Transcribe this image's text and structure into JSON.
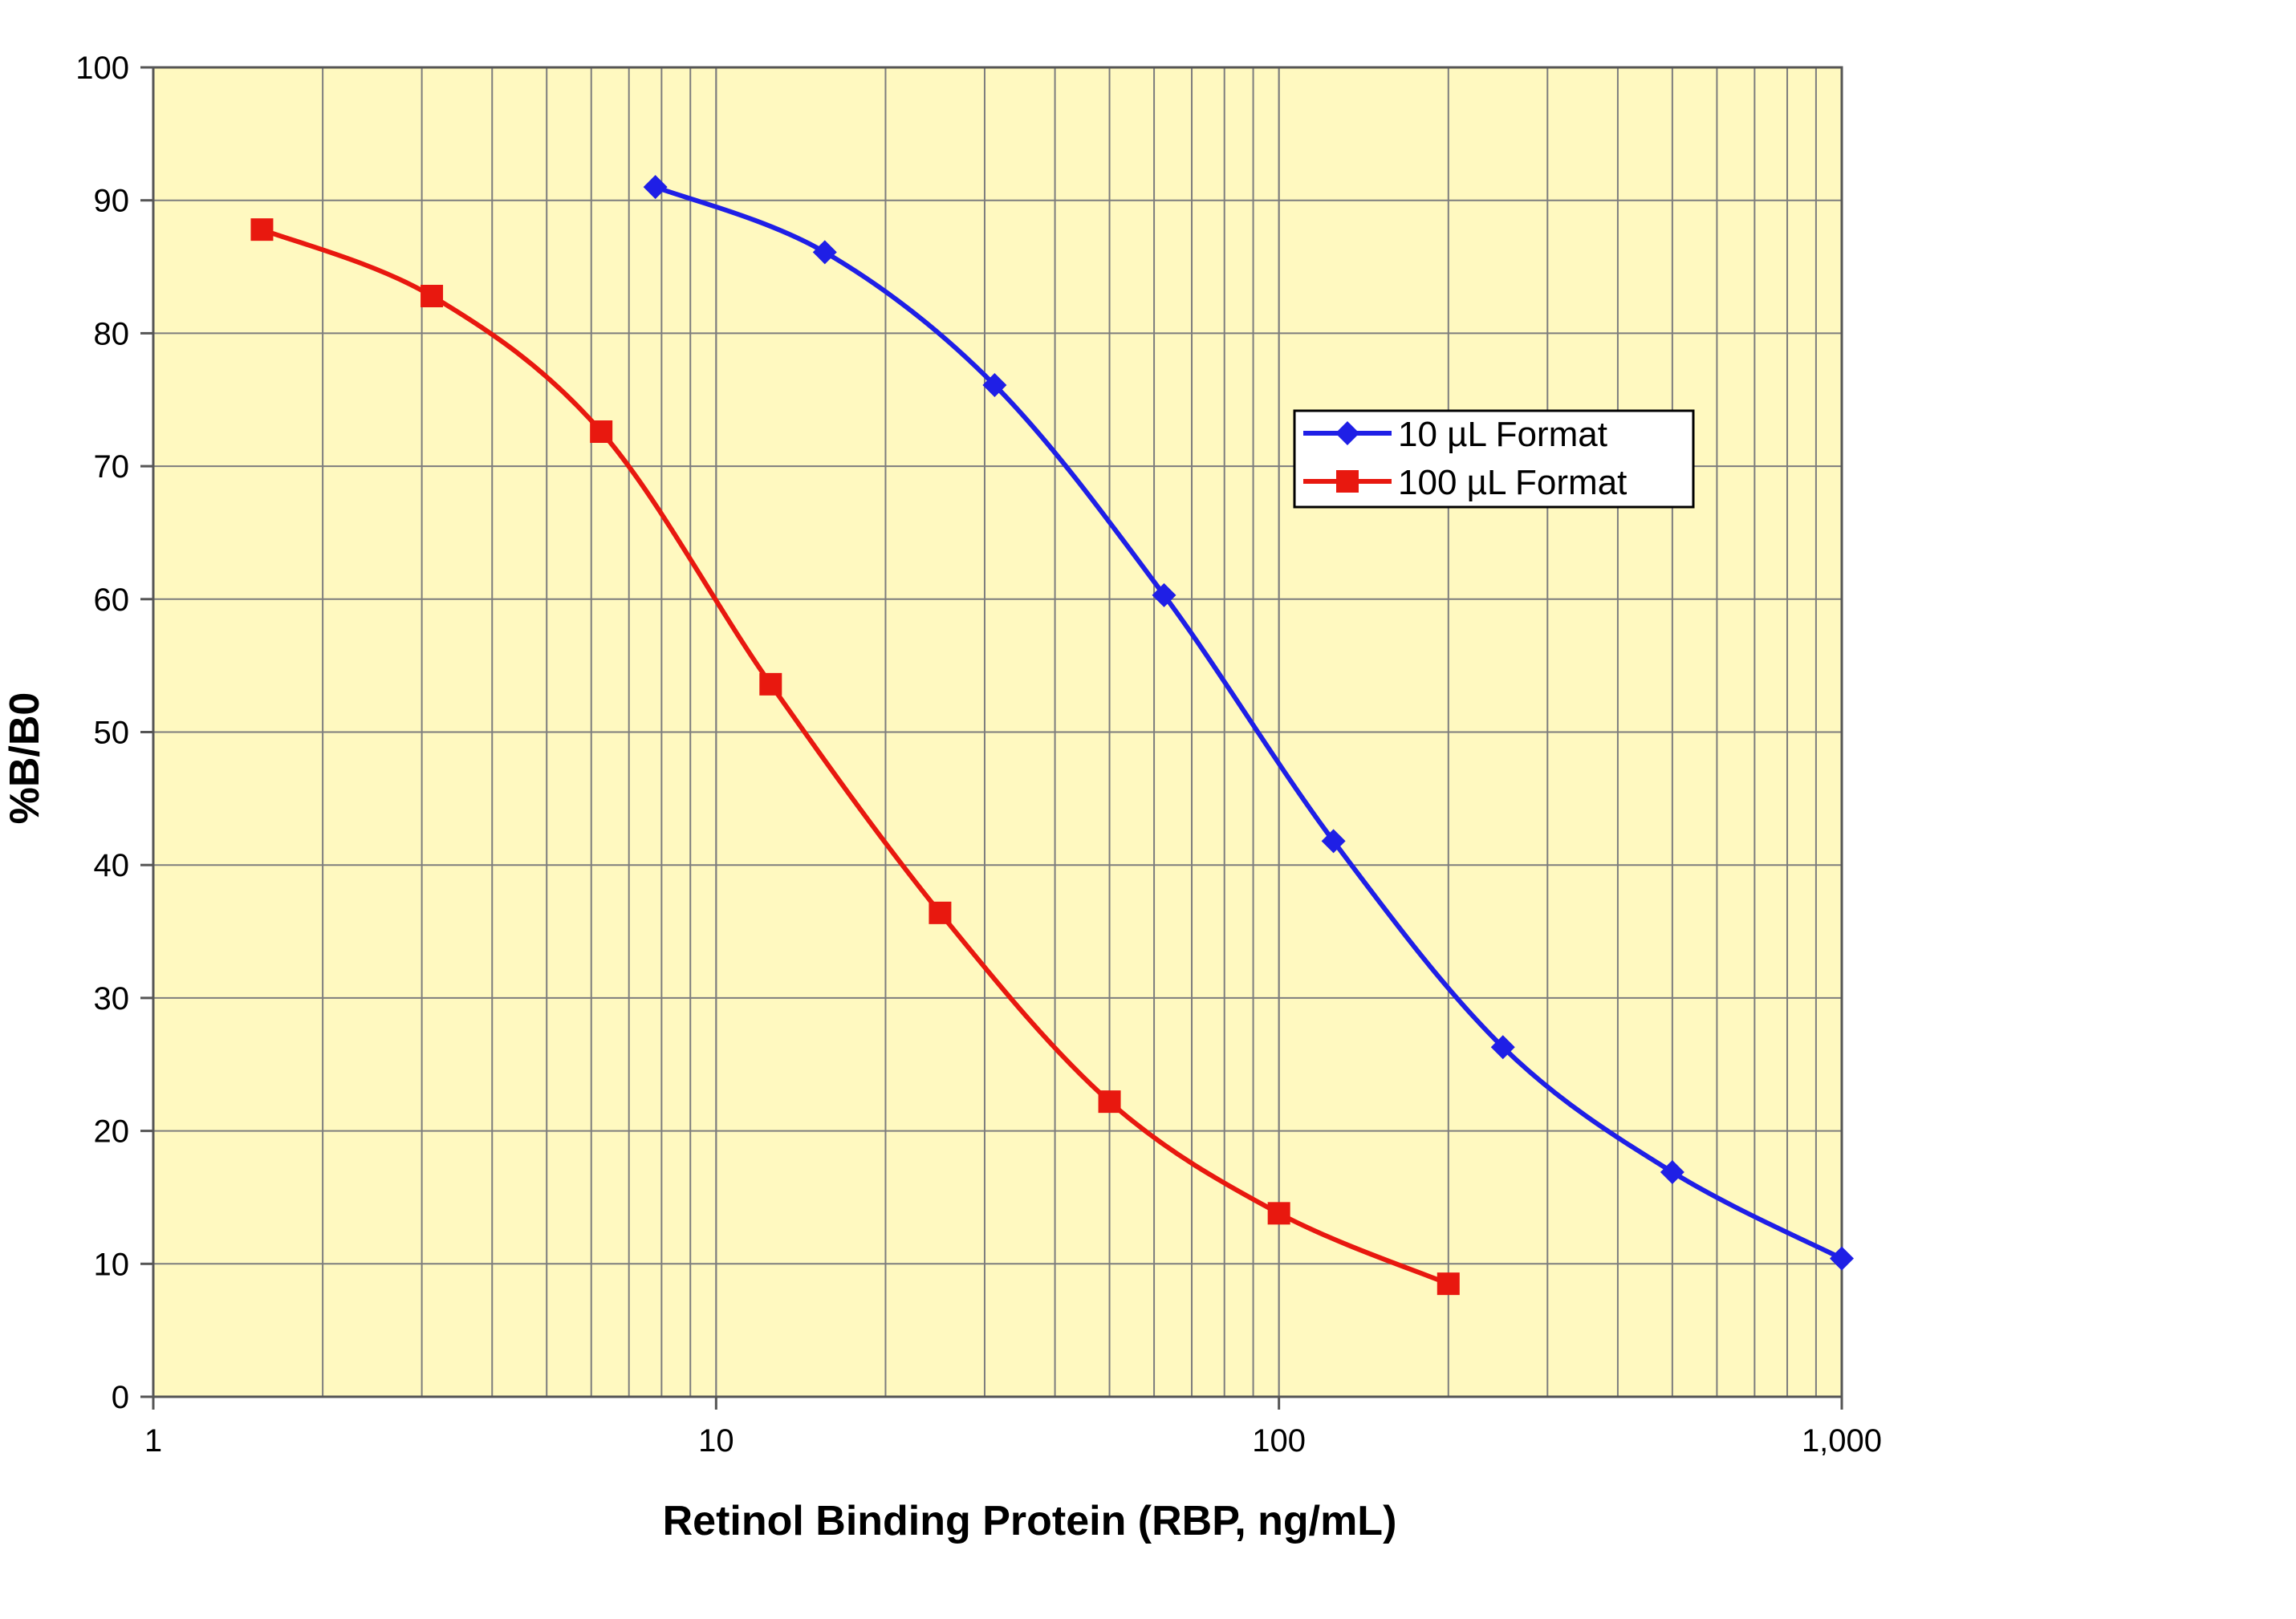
{
  "chart_data": {
    "type": "line",
    "title": "",
    "xlabel": "Retinol Binding Protein (RBP, ng/mL)",
    "ylabel": "%B/B0",
    "xscale": "log",
    "xlim": [
      1,
      1000
    ],
    "ylim": [
      0,
      100
    ],
    "x_ticks": [
      {
        "value": 1,
        "label": "1"
      },
      {
        "value": 10,
        "label": "10"
      },
      {
        "value": 100,
        "label": "100"
      },
      {
        "value": 1000,
        "label": "1,000"
      }
    ],
    "y_ticks": [
      {
        "value": 0,
        "label": "0"
      },
      {
        "value": 10,
        "label": "10"
      },
      {
        "value": 20,
        "label": "20"
      },
      {
        "value": 30,
        "label": "30"
      },
      {
        "value": 40,
        "label": "40"
      },
      {
        "value": 50,
        "label": "50"
      },
      {
        "value": 60,
        "label": "60"
      },
      {
        "value": 70,
        "label": "70"
      },
      {
        "value": 80,
        "label": "80"
      },
      {
        "value": 90,
        "label": "90"
      },
      {
        "value": 100,
        "label": "100"
      }
    ],
    "grid": true,
    "legend_position": "upper-right",
    "plot_background": "#fff9c0",
    "series": [
      {
        "name": "10 µL Format",
        "color": "#1f1fe6",
        "marker": "diamond",
        "points": [
          {
            "x": 7.8,
            "y": 91.0
          },
          {
            "x": 15.6,
            "y": 86.1
          },
          {
            "x": 31.25,
            "y": 76.1
          },
          {
            "x": 62.5,
            "y": 60.3
          },
          {
            "x": 125,
            "y": 41.8
          },
          {
            "x": 250,
            "y": 26.3
          },
          {
            "x": 500,
            "y": 16.9
          },
          {
            "x": 1000,
            "y": 10.4
          }
        ]
      },
      {
        "name": "100 µL Format",
        "color": "#e8180f",
        "marker": "square",
        "points": [
          {
            "x": 1.56,
            "y": 87.8
          },
          {
            "x": 3.125,
            "y": 82.8
          },
          {
            "x": 6.25,
            "y": 72.6
          },
          {
            "x": 12.5,
            "y": 53.6
          },
          {
            "x": 25,
            "y": 36.4
          },
          {
            "x": 50,
            "y": 22.2
          },
          {
            "x": 100,
            "y": 13.8
          },
          {
            "x": 200,
            "y": 8.5
          }
        ]
      }
    ]
  }
}
